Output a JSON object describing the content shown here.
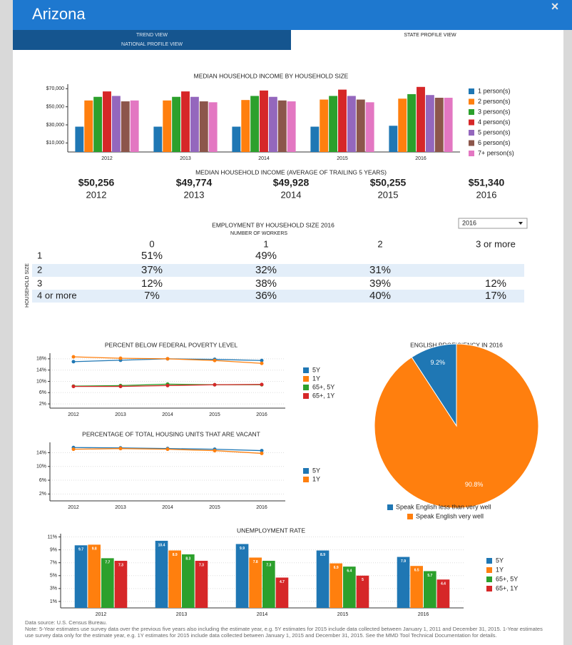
{
  "header": {
    "title": "Arizona",
    "close": "×"
  },
  "tabs": [
    "TREND VIEW",
    "NATIONAL PROFILE VIEW",
    "STATE PROFILE VIEW"
  ],
  "chart_data": [
    {
      "type": "bar",
      "title": "MEDIAN HOUSEHOLD INCOME BY HOUSEHOLD SIZE",
      "categories": [
        "2012",
        "2013",
        "2014",
        "2015",
        "2016"
      ],
      "series": [
        {
          "name": "1 person(s)",
          "color": "#1f77b4",
          "values": [
            28000,
            28000,
            28000,
            28000,
            29000
          ]
        },
        {
          "name": "2 person(s)",
          "color": "#ff7f0e",
          "values": [
            57000,
            57000,
            57500,
            58000,
            59000
          ]
        },
        {
          "name": "3 person(s)",
          "color": "#2ca02c",
          "values": [
            61000,
            61000,
            62000,
            62000,
            64000
          ]
        },
        {
          "name": "4 person(s)",
          "color": "#d62728",
          "values": [
            67000,
            67000,
            68000,
            69000,
            72000
          ]
        },
        {
          "name": "5 person(s)",
          "color": "#9467bd",
          "values": [
            62000,
            61000,
            61000,
            62000,
            63000
          ]
        },
        {
          "name": "6 person(s)",
          "color": "#8c564b",
          "values": [
            56000,
            56000,
            57000,
            58000,
            60000
          ]
        },
        {
          "name": "7+ person(s)",
          "color": "#e377c2",
          "values": [
            57000,
            55000,
            56000,
            55000,
            60000
          ]
        }
      ],
      "ylim": [
        0,
        75000
      ],
      "yticks": [
        {
          "value": 10000,
          "label": "$10,000"
        },
        {
          "value": 30000,
          "label": "$30,000"
        },
        {
          "value": 50000,
          "label": "$50,000"
        },
        {
          "value": 70000,
          "label": "$70,000"
        }
      ],
      "grid": false
    },
    {
      "type": "line",
      "title": "PERCENT BELOW FEDERAL POVERTY LEVEL",
      "categories": [
        "2012",
        "2013",
        "2014",
        "2015",
        "2016"
      ],
      "series": [
        {
          "name": "5Y",
          "color": "#1f77b4",
          "values": [
            17.0,
            17.5,
            18.0,
            17.8,
            17.4
          ]
        },
        {
          "name": "1Y",
          "color": "#ff7f0e",
          "values": [
            18.7,
            18.2,
            18.0,
            17.4,
            16.4
          ]
        },
        {
          "name": "65+, 5Y",
          "color": "#2ca02c",
          "values": [
            8.3,
            8.5,
            9.0,
            8.8,
            8.8
          ]
        },
        {
          "name": "65+, 1Y",
          "color": "#d62728",
          "values": [
            8.2,
            8.2,
            8.5,
            8.8,
            8.9
          ]
        }
      ],
      "ylim": [
        0.5,
        20
      ],
      "yticks": [
        {
          "value": 2,
          "label": "2%"
        },
        {
          "value": 6,
          "label": "6%"
        },
        {
          "value": 10,
          "label": "10%"
        },
        {
          "value": 14,
          "label": "14%"
        },
        {
          "value": 18,
          "label": "18%"
        }
      ],
      "grid": true
    },
    {
      "type": "line",
      "title": "PERCENTAGE OF TOTAL HOUSING UNITS THAT ARE VACANT",
      "categories": [
        "2012",
        "2013",
        "2014",
        "2015",
        "2016"
      ],
      "series": [
        {
          "name": "5Y",
          "color": "#1f77b4",
          "values": [
            15.5,
            15.4,
            15.2,
            15.0,
            14.6
          ]
        },
        {
          "name": "1Y",
          "color": "#ff7f0e",
          "values": [
            15.0,
            15.2,
            15.0,
            14.6,
            13.8
          ]
        }
      ],
      "ylim": [
        0,
        17
      ],
      "yticks": [
        {
          "value": 2,
          "label": "2%"
        },
        {
          "value": 6,
          "label": "6%"
        },
        {
          "value": 10,
          "label": "10%"
        },
        {
          "value": 14,
          "label": "14%"
        }
      ],
      "grid": true
    },
    {
      "type": "pie",
      "title": "ENGLISH PROFICIENCY IN 2016",
      "categories": [
        "Speak English less than very well",
        "Speak English very well"
      ],
      "values": [
        9.2,
        90.8
      ],
      "value_labels": [
        "9.2%",
        "90.8%"
      ],
      "colors": [
        "#1f77b4",
        "#ff7f0e"
      ]
    },
    {
      "type": "bar",
      "title": "UNEMPLOYMENT RATE",
      "categories": [
        "2012",
        "2013",
        "2014",
        "2015",
        "2016"
      ],
      "series": [
        {
          "name": "5Y",
          "color": "#1f77b4",
          "values": [
            9.7,
            10.4,
            9.9,
            8.9,
            7.9
          ]
        },
        {
          "name": "1Y",
          "color": "#ff7f0e",
          "values": [
            9.8,
            8.9,
            7.8,
            6.9,
            6.5
          ]
        },
        {
          "name": "65+, 5Y",
          "color": "#2ca02c",
          "values": [
            7.7,
            8.3,
            7.3,
            6.4,
            5.7
          ]
        },
        {
          "name": "65+, 1Y",
          "color": "#d62728",
          "values": [
            7.3,
            7.3,
            4.7,
            5.0,
            4.4
          ]
        }
      ],
      "ylim": [
        0,
        11.5
      ],
      "yticks": [
        {
          "value": 1,
          "label": "1%"
        },
        {
          "value": 3,
          "label": "3%"
        },
        {
          "value": 5,
          "label": "5%"
        },
        {
          "value": 7,
          "label": "7%"
        },
        {
          "value": 9,
          "label": "9%"
        },
        {
          "value": 11,
          "label": "11%"
        }
      ],
      "grid": true,
      "data_labels": true
    }
  ],
  "income_summary": {
    "title": "MEDIAN HOUSEHOLD INCOME (AVERAGE OF TRAILING 5 YEARS)",
    "values": [
      "$50,256",
      "$49,774",
      "$49,928",
      "$50,255",
      "$51,340"
    ],
    "years": [
      "2012",
      "2013",
      "2014",
      "2015",
      "2016"
    ]
  },
  "table": {
    "title": "EMPLOYMENT BY HOUSEHOLD SIZE 2016",
    "subtitle": "NUMBER OF WORKERS",
    "row_axis_label": "HOUSEHOLD SIZE",
    "dropdown": "2016",
    "columns": [
      "0",
      "1",
      "2",
      "3 or more"
    ],
    "rows": [
      [
        "1",
        "51%",
        "49%",
        null,
        null
      ],
      [
        "2",
        "37%",
        "32%",
        "31%",
        null
      ],
      [
        "3",
        "12%",
        "38%",
        "39%",
        "12%"
      ],
      [
        "4 or more",
        "7%",
        "36%",
        "40%",
        "17%"
      ]
    ]
  },
  "footnote": {
    "source": "Data source: U.S. Census Bureau.",
    "note": "Note: 5-Year estimates use survey data over the previous five years also including the estimate year, e.g. 5Y estimates for 2015 include data collected between January 1, 2011 and December 31, 2015. 1-Year estimates use survey data only for the estimate year, e.g. 1Y estimates for 2015 include data collected between January 1, 2015 and December 31, 2015. See the MMD Tool Technical Documentation for details."
  }
}
